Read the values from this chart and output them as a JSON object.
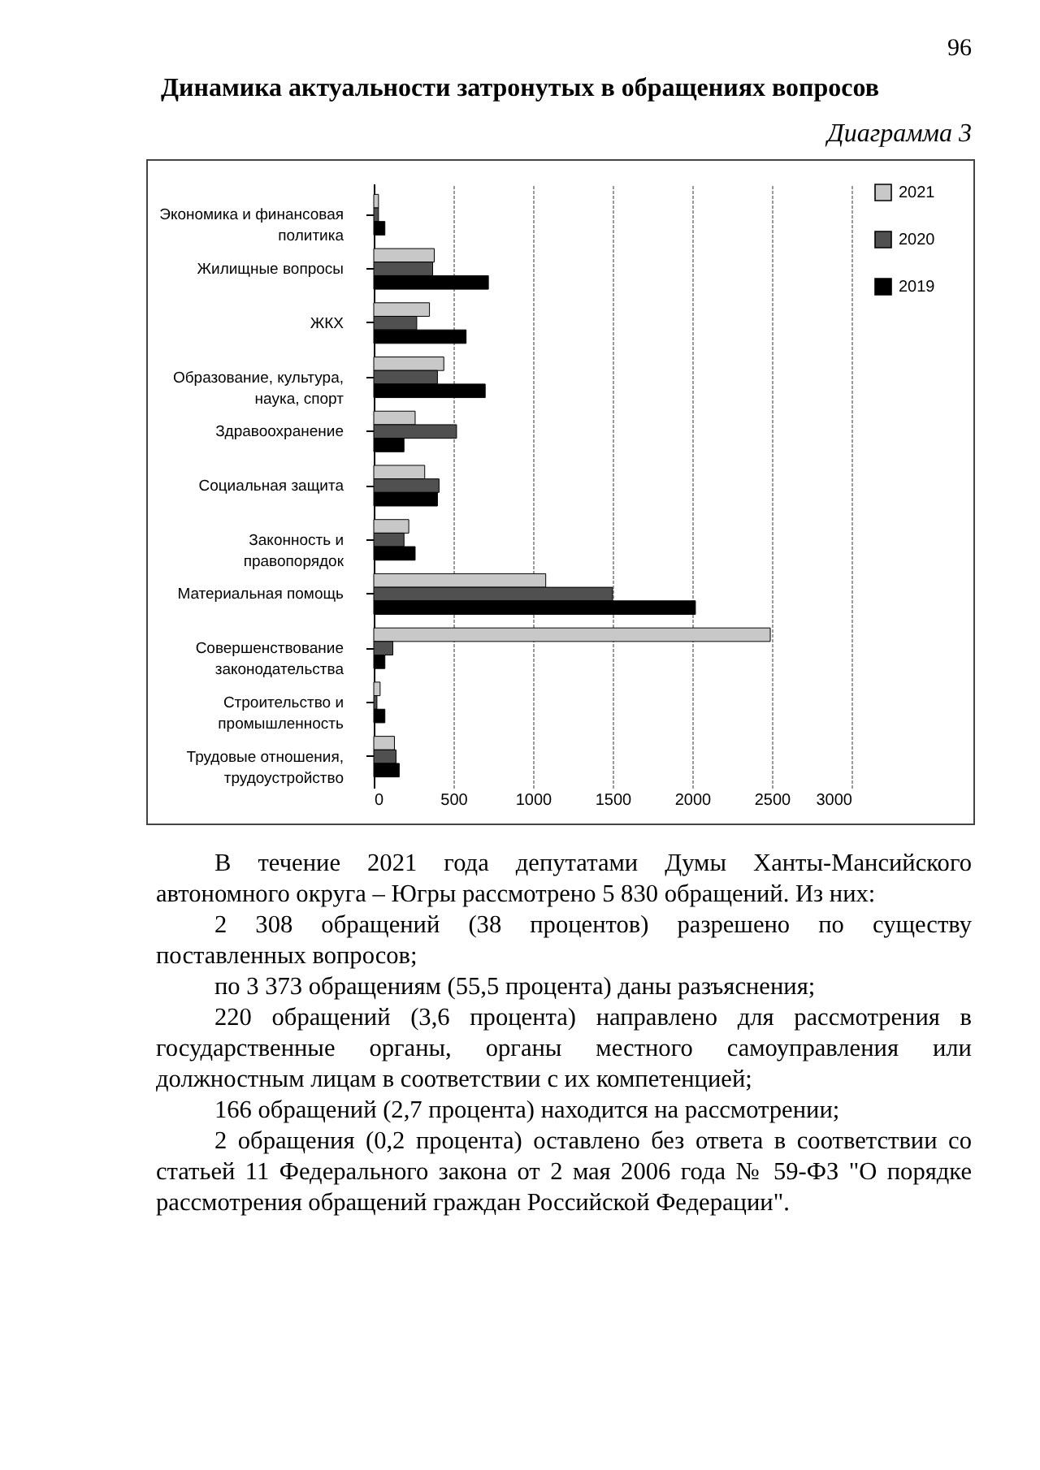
{
  "chart_data": {
    "type": "bar",
    "orientation": "horizontal",
    "title": "Динамика актуальности затронутых в обращениях вопросов",
    "subtitle": "Диаграмма 3",
    "categories": [
      "Экономика и финансовая политика",
      "Жилищные вопросы",
      "ЖКХ",
      "Образование, культура, наука, спорт",
      "Здравоохранение",
      "Социальная защита",
      "Законность и правопорядок",
      "Материальная помощь",
      "Совершенствование законодательства",
      "Строительство и промышленность",
      "Трудовые отношения, трудоустройство"
    ],
    "series": [
      {
        "name": "2021",
        "color": "#c8c8c8",
        "values": [
          30,
          380,
          350,
          440,
          260,
          320,
          220,
          1080,
          2490,
          40,
          130
        ]
      },
      {
        "name": "2020",
        "color": "#505050",
        "values": [
          30,
          370,
          270,
          400,
          520,
          410,
          190,
          1500,
          120,
          20,
          140
        ]
      },
      {
        "name": "2019",
        "color": "#000000",
        "values": [
          70,
          720,
          580,
          700,
          190,
          400,
          260,
          2020,
          70,
          70,
          160
        ]
      }
    ],
    "xlim": [
      0,
      3000
    ],
    "xticks": [
      0,
      500,
      1000,
      1500,
      2000,
      2500,
      3000
    ],
    "grid": "x",
    "legend": "right",
    "annotations": [
      "96",
      "В течение 2021 года депутатами Думы Ханты-Мансийского автономного округа – Югры рассмотрено 5 830 обращений. Из них:",
      "2 308 обращений (38 процентов) разрешено по существу поставленных вопросов;",
      "по 3 373 обращениям (55,5 процента) даны разъяснения;",
      "220 обращений (3,6 процента) направлено для рассмотрения в государственные органы, органы местного самоуправления или должностным лицам в соответствии с их компетенцией;",
      "166 обращений (2,7 процента) находится на рассмотрении;",
      "2 обращения (0,2 процента) оставлено без ответа в соответствии со статьей 11 Федерального закона от 2 мая 2006 года № 59-ФЗ \"О порядке рассмотрения обращений граждан Российской Федерации\"."
    ]
  }
}
